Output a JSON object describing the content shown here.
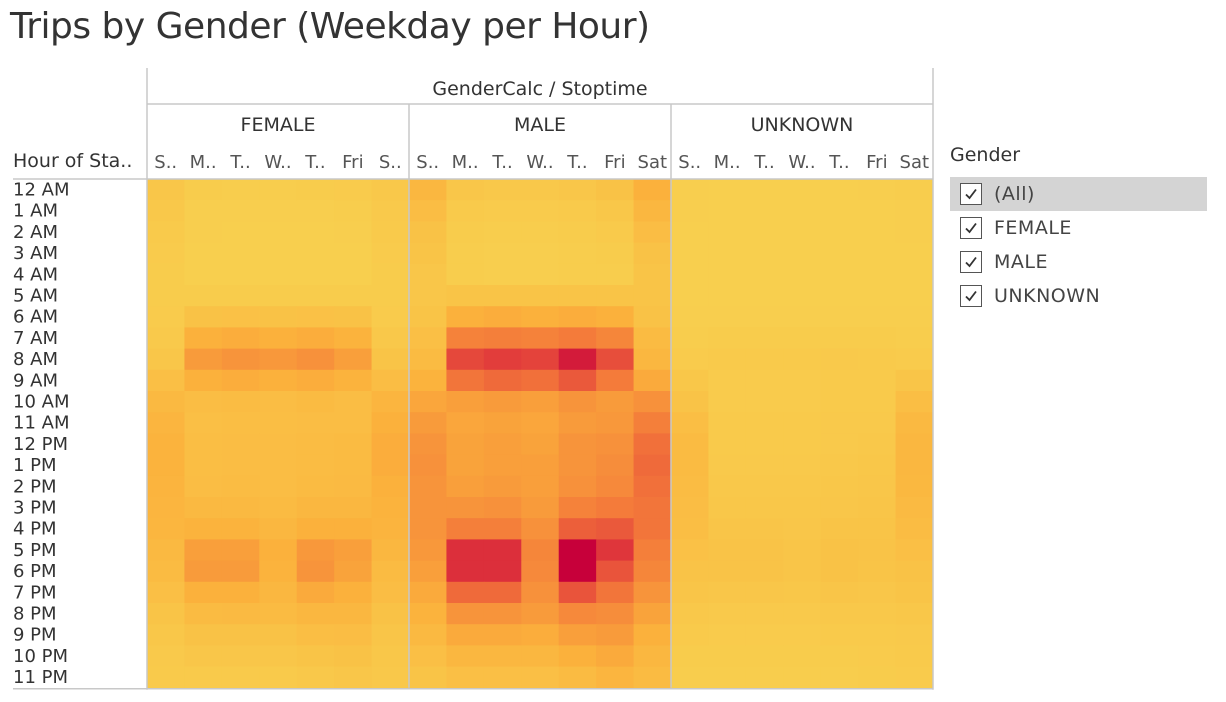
{
  "title": "Trips by Gender (Weekday per Hour)",
  "legend": {
    "title": "Gender",
    "items": [
      {
        "label": "(All)",
        "checked": true,
        "selected": true
      },
      {
        "label": "FEMALE",
        "checked": true,
        "selected": false
      },
      {
        "label": "MALE",
        "checked": true,
        "selected": false
      },
      {
        "label": "UNKNOWN",
        "checked": true,
        "selected": false
      }
    ]
  },
  "chart_data": {
    "type": "heatmap",
    "column_header": "GenderCalc / Stoptime",
    "row_header": "Hour of Sta..",
    "groups": [
      "FEMALE",
      "MALE",
      "UNKNOWN"
    ],
    "day_labels": [
      "S..",
      "M..",
      "T..",
      "W..",
      "T..",
      "Fri",
      "S.."
    ],
    "day_labels_by_group": [
      [
        "S..",
        "M..",
        "T..",
        "W..",
        "T..",
        "Fri",
        "S.."
      ],
      [
        "S..",
        "M..",
        "T..",
        "W..",
        "T..",
        "Fri",
        "Sat"
      ],
      [
        "S..",
        "M..",
        "T..",
        "W..",
        "T..",
        "Fri",
        "Sat"
      ]
    ],
    "hours": [
      "12 AM",
      "1 AM",
      "2 AM",
      "3 AM",
      "4 AM",
      "5 AM",
      "6 AM",
      "7 AM",
      "8 AM",
      "9 AM",
      "10 AM",
      "11 AM",
      "12 PM",
      "1 PM",
      "2 PM",
      "3 PM",
      "4 PM",
      "5 PM",
      "6 PM",
      "7 PM",
      "8 PM",
      "9 PM",
      "10 PM",
      "11 PM"
    ],
    "color_scale": {
      "low": "#f8d04f",
      "mid1": "#fbb13c",
      "mid2": "#f47b3a",
      "mid3": "#e23d3b",
      "high": "#c7003a"
    },
    "value_range": [
      0,
      100
    ],
    "values": {
      "FEMALE": [
        [
          10,
          4,
          3,
          3,
          4,
          5,
          8
        ],
        [
          8,
          2,
          2,
          2,
          2,
          3,
          7
        ],
        [
          6,
          2,
          1,
          1,
          1,
          2,
          6
        ],
        [
          5,
          1,
          1,
          1,
          1,
          1,
          5
        ],
        [
          4,
          1,
          1,
          1,
          1,
          1,
          4
        ],
        [
          4,
          4,
          4,
          4,
          4,
          4,
          4
        ],
        [
          5,
          14,
          15,
          14,
          15,
          14,
          5
        ],
        [
          7,
          30,
          32,
          30,
          32,
          28,
          8
        ],
        [
          10,
          42,
          46,
          44,
          48,
          40,
          12
        ],
        [
          16,
          30,
          32,
          30,
          32,
          28,
          18
        ],
        [
          22,
          18,
          19,
          18,
          20,
          18,
          26
        ],
        [
          26,
          16,
          17,
          17,
          18,
          18,
          30
        ],
        [
          28,
          17,
          18,
          18,
          19,
          20,
          32
        ],
        [
          28,
          17,
          18,
          18,
          19,
          20,
          32
        ],
        [
          27,
          18,
          19,
          18,
          20,
          21,
          30
        ],
        [
          26,
          22,
          22,
          20,
          24,
          24,
          28
        ],
        [
          25,
          28,
          28,
          24,
          30,
          30,
          27
        ],
        [
          22,
          40,
          40,
          30,
          44,
          40,
          24
        ],
        [
          20,
          42,
          42,
          28,
          46,
          38,
          20
        ],
        [
          16,
          30,
          30,
          24,
          34,
          30,
          18
        ],
        [
          12,
          20,
          21,
          20,
          24,
          24,
          14
        ],
        [
          9,
          14,
          14,
          14,
          17,
          18,
          11
        ],
        [
          7,
          10,
          10,
          10,
          12,
          14,
          9
        ],
        [
          6,
          6,
          6,
          6,
          8,
          10,
          8
        ]
      ],
      "MALE": [
        [
          24,
          10,
          8,
          8,
          10,
          14,
          30
        ],
        [
          18,
          6,
          5,
          5,
          6,
          9,
          24
        ],
        [
          14,
          4,
          3,
          3,
          4,
          6,
          18
        ],
        [
          12,
          3,
          2,
          2,
          3,
          4,
          14
        ],
        [
          10,
          3,
          2,
          2,
          3,
          3,
          12
        ],
        [
          10,
          12,
          12,
          12,
          12,
          12,
          12
        ],
        [
          12,
          30,
          32,
          30,
          32,
          30,
          14
        ],
        [
          16,
          56,
          58,
          56,
          60,
          54,
          20
        ],
        [
          20,
          78,
          82,
          80,
          92,
          76,
          24
        ],
        [
          28,
          62,
          66,
          64,
          72,
          60,
          34
        ],
        [
          36,
          40,
          42,
          40,
          46,
          42,
          48
        ],
        [
          42,
          36,
          38,
          36,
          42,
          44,
          58
        ],
        [
          46,
          38,
          40,
          38,
          46,
          48,
          64
        ],
        [
          48,
          38,
          40,
          40,
          46,
          50,
          66
        ],
        [
          46,
          40,
          42,
          40,
          48,
          52,
          64
        ],
        [
          46,
          46,
          48,
          42,
          56,
          60,
          62
        ],
        [
          46,
          58,
          58,
          48,
          70,
          72,
          62
        ],
        [
          44,
          86,
          86,
          54,
          100,
          84,
          58
        ],
        [
          40,
          86,
          86,
          52,
          100,
          74,
          54
        ],
        [
          34,
          66,
          66,
          48,
          74,
          62,
          46
        ],
        [
          28,
          46,
          46,
          42,
          52,
          50,
          38
        ],
        [
          22,
          34,
          34,
          32,
          40,
          42,
          30
        ],
        [
          16,
          24,
          24,
          24,
          30,
          34,
          24
        ],
        [
          12,
          16,
          16,
          16,
          20,
          26,
          20
        ]
      ],
      "UNKNOWN": [
        [
          2,
          1,
          1,
          1,
          1,
          2,
          3
        ],
        [
          2,
          1,
          1,
          1,
          1,
          1,
          2
        ],
        [
          1,
          1,
          1,
          1,
          1,
          1,
          2
        ],
        [
          1,
          1,
          1,
          1,
          1,
          1,
          1
        ],
        [
          1,
          1,
          1,
          1,
          1,
          1,
          1
        ],
        [
          1,
          1,
          1,
          1,
          1,
          1,
          1
        ],
        [
          2,
          2,
          2,
          2,
          2,
          2,
          2
        ],
        [
          3,
          4,
          4,
          4,
          4,
          4,
          3
        ],
        [
          5,
          6,
          6,
          6,
          7,
          6,
          5
        ],
        [
          9,
          5,
          5,
          5,
          6,
          6,
          11
        ],
        [
          13,
          5,
          5,
          5,
          6,
          6,
          17
        ],
        [
          17,
          6,
          6,
          6,
          7,
          7,
          22
        ],
        [
          20,
          6,
          6,
          6,
          7,
          8,
          24
        ],
        [
          20,
          7,
          7,
          7,
          8,
          9,
          24
        ],
        [
          19,
          8,
          8,
          8,
          9,
          10,
          23
        ],
        [
          18,
          9,
          9,
          9,
          10,
          11,
          21
        ],
        [
          17,
          11,
          11,
          10,
          12,
          12,
          19
        ],
        [
          15,
          13,
          13,
          11,
          14,
          13,
          16
        ],
        [
          13,
          13,
          13,
          11,
          14,
          12,
          14
        ],
        [
          11,
          10,
          10,
          9,
          11,
          10,
          12
        ],
        [
          8,
          7,
          7,
          7,
          8,
          8,
          9
        ],
        [
          6,
          5,
          5,
          5,
          6,
          6,
          7
        ],
        [
          4,
          4,
          4,
          4,
          4,
          5,
          6
        ],
        [
          3,
          3,
          3,
          3,
          3,
          4,
          5
        ]
      ]
    }
  }
}
